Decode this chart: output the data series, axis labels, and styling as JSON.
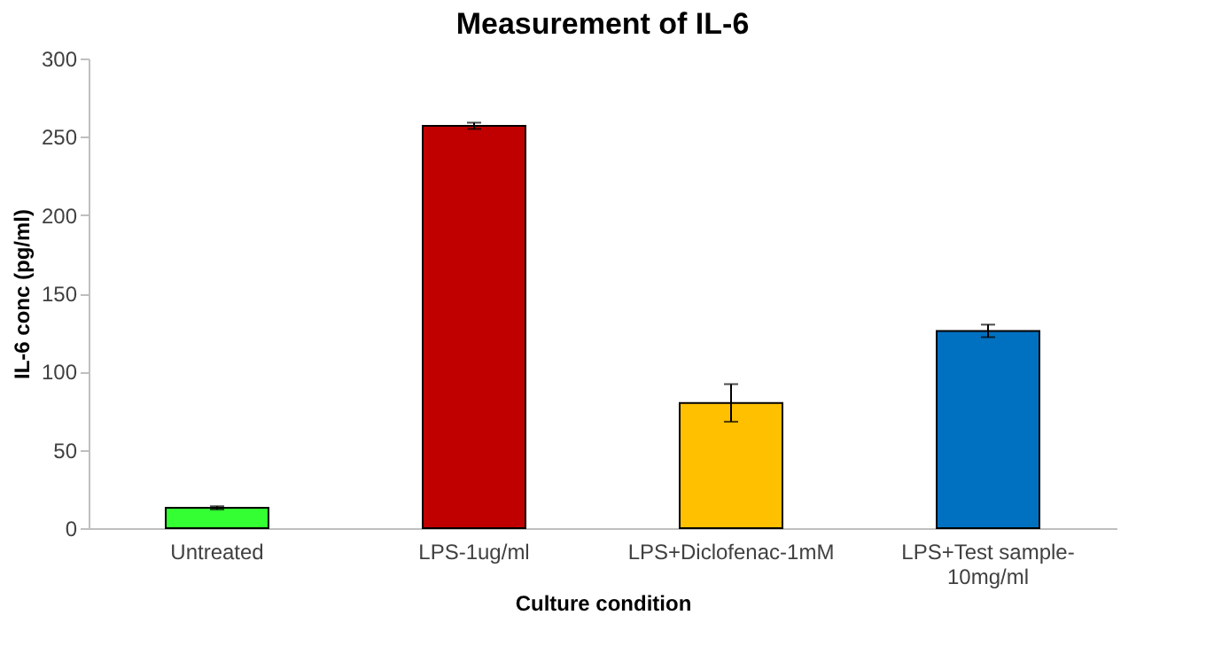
{
  "chart_data": {
    "type": "bar",
    "title": "Measurement of IL-6",
    "xlabel": "Culture condition",
    "ylabel": "IL-6 conc (pg/ml)",
    "categories": [
      "Untreated",
      "LPS-1ug/ml",
      "LPS+Diclofenac-1mM",
      "LPS+Test sample-10mg/ml"
    ],
    "values": [
      13,
      257,
      80,
      126
    ],
    "colors": [
      "#33ff33",
      "#c00000",
      "#ffc000",
      "#0070c0"
    ],
    "errors": [
      1,
      2,
      12,
      4
    ],
    "ylim": [
      0,
      300
    ],
    "yticks": [
      0,
      50,
      100,
      150,
      200,
      250,
      300
    ],
    "grid": false
  }
}
